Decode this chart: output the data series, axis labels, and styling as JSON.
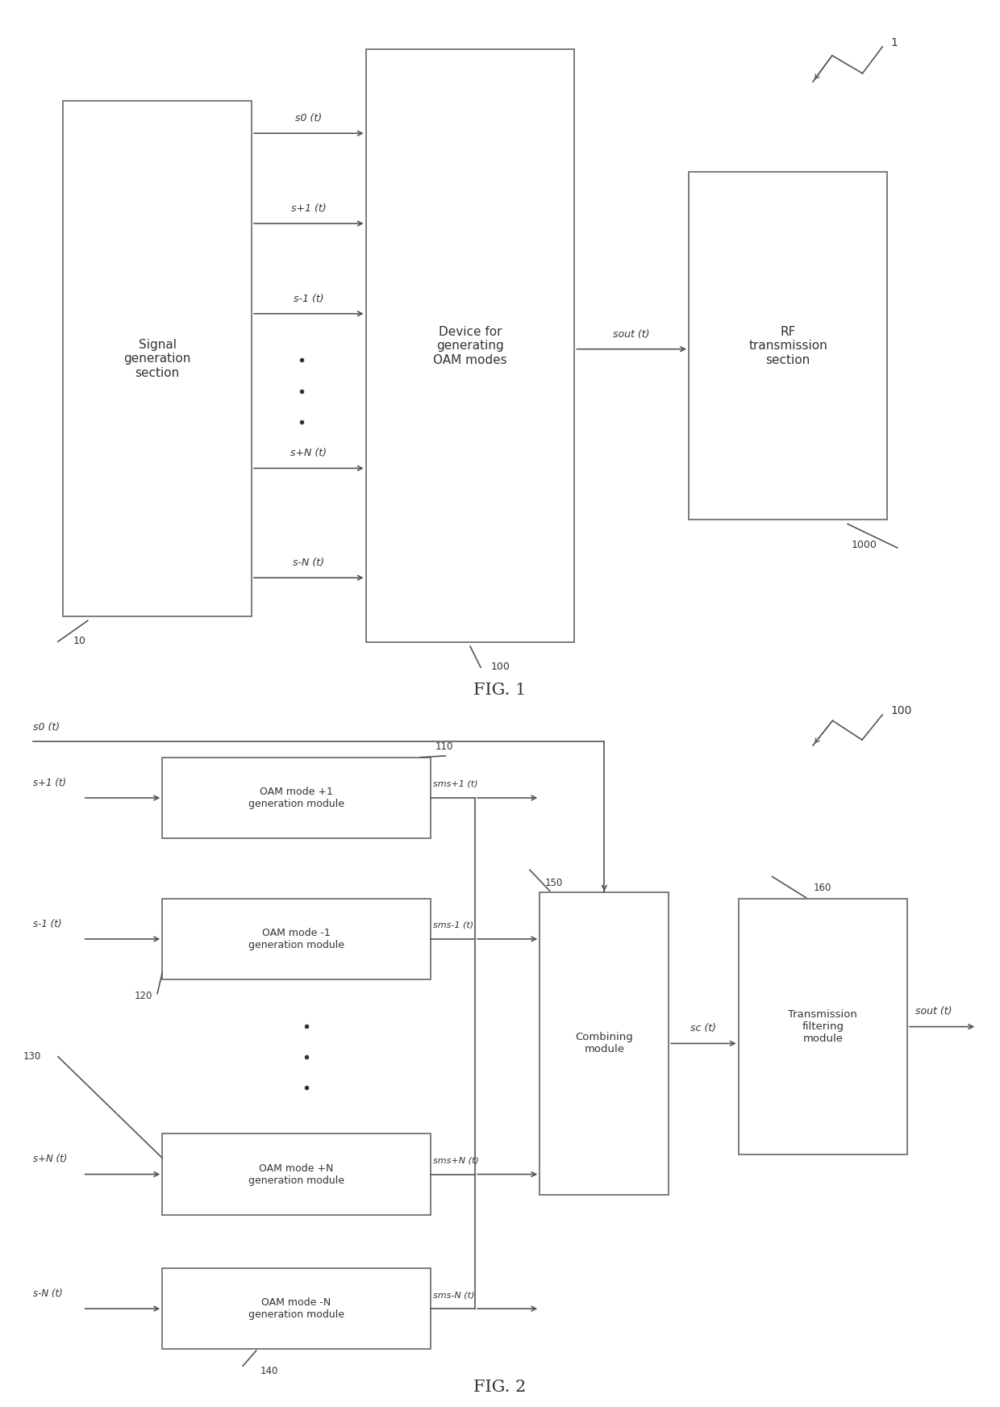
{
  "fig_width": 12.4,
  "fig_height": 17.44,
  "bg_color": "#ffffff",
  "box_edge_color": "#666666",
  "text_color": "#333333",
  "arrow_color": "#555555",
  "fig1": {
    "title": "FIG. 1",
    "ref1": "1",
    "sg_label": "Signal\ngeneration\nsection",
    "sg_ref": "10",
    "oam_label": "Device for\ngenerating\nOAM modes",
    "oam_ref": "100",
    "rf_label": "RF\ntransmission\nsection",
    "rf_ref": "1000",
    "signal_labels": [
      "s0 (t)",
      "s+1 (t)",
      "s-1 (t)",
      "s+N (t)",
      "s-N (t)"
    ],
    "sout_label": "sout (t)"
  },
  "fig2": {
    "title": "FIG. 2",
    "ref100": "100",
    "s0_label": "s0 (t)",
    "sc_label": "sc (t)",
    "sout_label": "sout (t)",
    "mod_labels": [
      "OAM mode +1\ngeneration module",
      "OAM mode -1\ngeneration module",
      "OAM mode +N\ngeneration module",
      "OAM mode -N\ngeneration module"
    ],
    "mod_refs": [
      "110",
      "120",
      "130",
      "140"
    ],
    "mod_out_sigs": [
      "sms+1 (t)",
      "sms-1 (t)",
      "sms+N (t)",
      "sms-N (t)"
    ],
    "mod_in_sigs": [
      "s+1 (t)",
      "s-1 (t)",
      "s+N (t)",
      "s-N (t)"
    ]
  }
}
